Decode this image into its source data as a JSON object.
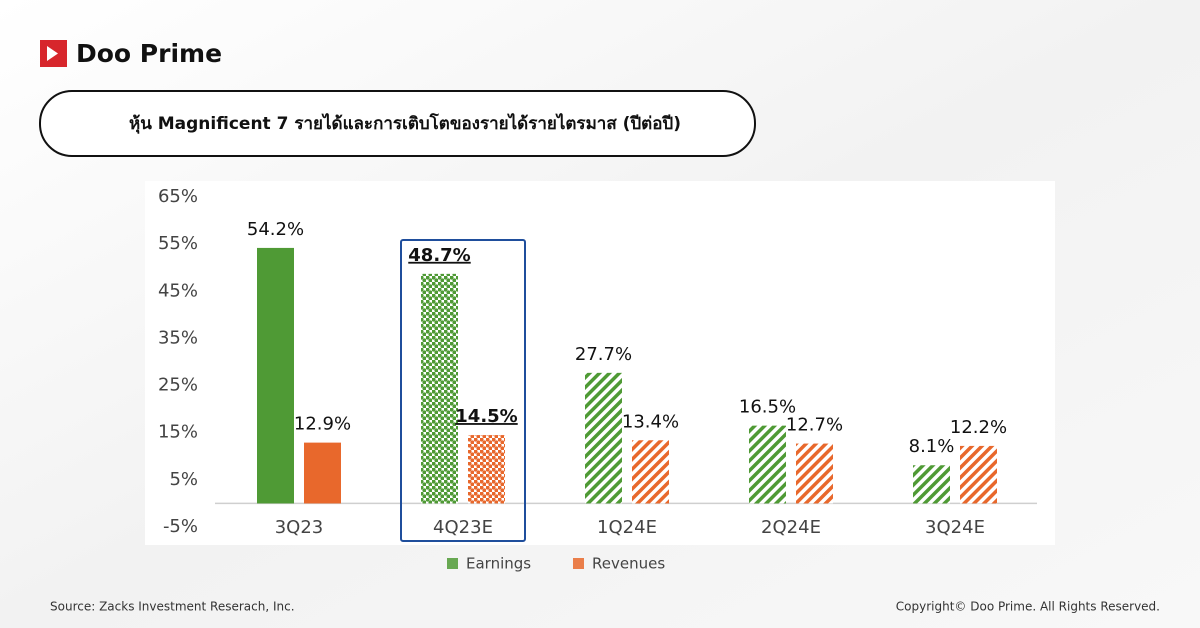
{
  "brand": "Doo Prime",
  "source": "Source: Zacks Investment Reserach, Inc.",
  "copyright": "Copyright© Doo Prime. All Rights Reserved.",
  "chart_data": {
    "type": "bar",
    "title": "หุ้น Magnificent 7 รายได้และการเติบโตของรายได้รายไตรมาส (ปีต่อปี)",
    "categories": [
      "3Q23",
      "4Q23E",
      "1Q24E",
      "2Q24E",
      "3Q24E"
    ],
    "series": [
      {
        "name": "Earnings",
        "color": "#4f9a35",
        "values": [
          54.2,
          48.7,
          27.7,
          16.5,
          8.1
        ],
        "value_labels": [
          "54.2%",
          "48.7%",
          "27.7%",
          "16.5%",
          "8.1%"
        ]
      },
      {
        "name": "Revenues",
        "color": "#e8682c",
        "values": [
          12.9,
          14.5,
          13.4,
          12.7,
          12.2
        ],
        "value_labels": [
          "12.9%",
          "14.5%",
          "13.4%",
          "12.7%",
          "12.2%"
        ]
      }
    ],
    "fill_styles": [
      "solid",
      "dots",
      "hatch",
      "hatch",
      "hatch"
    ],
    "highlight_index": 1,
    "ylim": [
      -5,
      65
    ],
    "yticks": [
      {
        "value": -5,
        "label": "-5%"
      },
      {
        "value": 5,
        "label": "5%"
      },
      {
        "value": 15,
        "label": "15%"
      },
      {
        "value": 25,
        "label": "25%"
      },
      {
        "value": 35,
        "label": "35%"
      },
      {
        "value": 45,
        "label": "45%"
      },
      {
        "value": 55,
        "label": "55%"
      },
      {
        "value": 65,
        "label": "65%"
      }
    ],
    "grid": false,
    "legend": "bottom"
  }
}
